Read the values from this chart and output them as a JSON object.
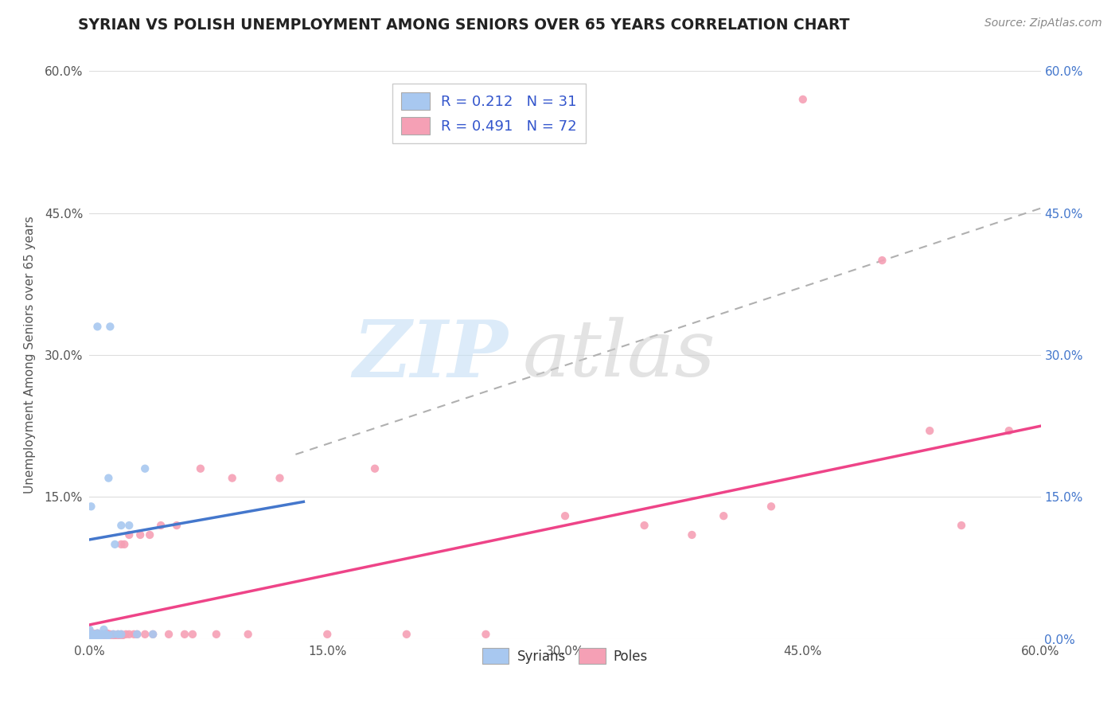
{
  "title": "SYRIAN VS POLISH UNEMPLOYMENT AMONG SENIORS OVER 65 YEARS CORRELATION CHART",
  "source": "Source: ZipAtlas.com",
  "ylabel": "Unemployment Among Seniors over 65 years",
  "xlim": [
    0.0,
    0.6
  ],
  "ylim": [
    0.0,
    0.6
  ],
  "xtick_vals": [
    0.0,
    0.15,
    0.3,
    0.45,
    0.6
  ],
  "ytick_vals": [
    0.0,
    0.15,
    0.3,
    0.45,
    0.6
  ],
  "xticklabels": [
    "0.0%",
    "15.0%",
    "30.0%",
    "45.0%",
    "60.0%"
  ],
  "left_yticklabels": [
    "",
    "15.0%",
    "30.0%",
    "45.0%",
    "60.0%"
  ],
  "right_yticklabels": [
    "0.0%",
    "15.0%",
    "30.0%",
    "45.0%",
    "60.0%"
  ],
  "syrian_R": "0.212",
  "syrian_N": "31",
  "polish_R": "0.491",
  "polish_N": "72",
  "syrian_color": "#a8c8f0",
  "polish_color": "#f5a0b5",
  "syrian_line_color": "#4477cc",
  "polish_line_color": "#ee4488",
  "trend_line_color": "#b0b0b0",
  "background_color": "#ffffff",
  "syrians_label": "Syrians",
  "poles_label": "Poles",
  "syrian_line_x0": 0.0,
  "syrian_line_x1": 0.135,
  "syrian_line_y0": 0.105,
  "syrian_line_y1": 0.145,
  "polish_line_x0": 0.0,
  "polish_line_x1": 0.6,
  "polish_line_y0": 0.015,
  "polish_line_y1": 0.225,
  "dash_line_x0": 0.13,
  "dash_line_x1": 0.6,
  "dash_line_y0": 0.195,
  "dash_line_y1": 0.455,
  "syrian_scatter_x": [
    0.0,
    0.0,
    0.001,
    0.002,
    0.003,
    0.004,
    0.005,
    0.005,
    0.006,
    0.007,
    0.008,
    0.009,
    0.01,
    0.011,
    0.012,
    0.013,
    0.015,
    0.016,
    0.018,
    0.02,
    0.025,
    0.03,
    0.035,
    0.04,
    0.005,
    0.002,
    0.001,
    0.003,
    0.008,
    0.012,
    0.02
  ],
  "syrian_scatter_y": [
    0.005,
    0.01,
    0.002,
    0.003,
    0.004,
    0.005,
    0.0,
    0.006,
    0.002,
    0.003,
    0.005,
    0.01,
    0.005,
    0.003,
    0.004,
    0.33,
    0.005,
    0.1,
    0.005,
    0.12,
    0.12,
    0.005,
    0.18,
    0.005,
    0.33,
    0.005,
    0.14,
    0.005,
    0.005,
    0.17,
    0.005
  ],
  "polish_scatter_x": [
    0.0,
    0.0,
    0.0,
    0.0,
    0.001,
    0.001,
    0.002,
    0.002,
    0.003,
    0.003,
    0.004,
    0.004,
    0.005,
    0.005,
    0.005,
    0.006,
    0.006,
    0.007,
    0.007,
    0.008,
    0.008,
    0.009,
    0.009,
    0.01,
    0.01,
    0.011,
    0.011,
    0.012,
    0.013,
    0.014,
    0.015,
    0.016,
    0.017,
    0.018,
    0.019,
    0.02,
    0.02,
    0.021,
    0.022,
    0.023,
    0.025,
    0.025,
    0.028,
    0.03,
    0.032,
    0.035,
    0.038,
    0.04,
    0.045,
    0.05,
    0.055,
    0.06,
    0.065,
    0.07,
    0.08,
    0.09,
    0.1,
    0.12,
    0.15,
    0.18,
    0.2,
    0.25,
    0.3,
    0.35,
    0.38,
    0.4,
    0.43,
    0.45,
    0.5,
    0.53,
    0.55,
    0.58
  ],
  "polish_scatter_y": [
    0.002,
    0.004,
    0.006,
    0.008,
    0.002,
    0.005,
    0.003,
    0.006,
    0.002,
    0.004,
    0.003,
    0.005,
    0.002,
    0.004,
    0.006,
    0.003,
    0.005,
    0.002,
    0.004,
    0.003,
    0.005,
    0.002,
    0.004,
    0.002,
    0.005,
    0.003,
    0.006,
    0.004,
    0.005,
    0.003,
    0.005,
    0.004,
    0.003,
    0.005,
    0.004,
    0.005,
    0.1,
    0.004,
    0.1,
    0.005,
    0.005,
    0.11,
    0.005,
    0.005,
    0.11,
    0.005,
    0.11,
    0.005,
    0.12,
    0.005,
    0.12,
    0.005,
    0.005,
    0.18,
    0.005,
    0.17,
    0.005,
    0.17,
    0.005,
    0.18,
    0.005,
    0.005,
    0.13,
    0.12,
    0.11,
    0.13,
    0.14,
    0.57,
    0.4,
    0.22,
    0.12,
    0.22
  ]
}
